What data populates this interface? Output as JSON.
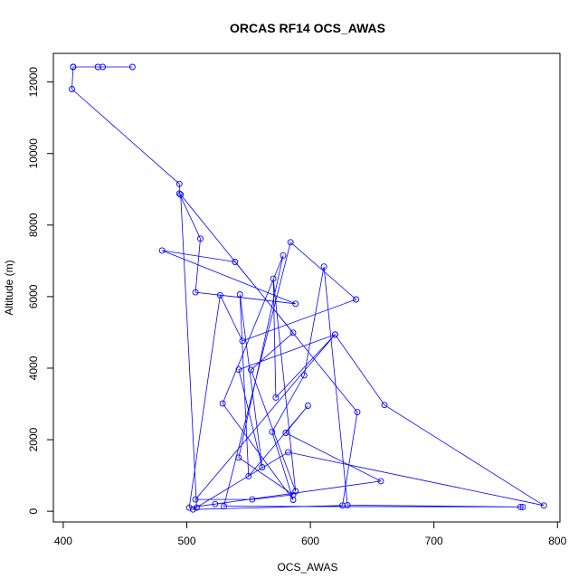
{
  "chart_data": {
    "type": "line",
    "title": "ORCAS RF14 OCS_AWAS",
    "xlabel": "OCS_AWAS",
    "ylabel": "Altitude (m)",
    "xlim": [
      392,
      802
    ],
    "ylim": [
      -300,
      12800
    ],
    "xticks": [
      400,
      500,
      600,
      700,
      800
    ],
    "yticks": [
      0,
      2000,
      4000,
      6000,
      8000,
      10000,
      12000
    ],
    "grid": false,
    "legend": "none",
    "series_color": "#0000ff",
    "points": [
      [
        456,
        12420
      ],
      [
        428,
        12420
      ],
      [
        432,
        12420
      ],
      [
        408,
        12420
      ],
      [
        408,
        12420
      ],
      [
        407,
        11800
      ],
      [
        494,
        9150
      ],
      [
        494,
        8880
      ],
      [
        511,
        7620
      ],
      [
        507,
        6120
      ],
      [
        588,
        5800
      ],
      [
        480,
        7290
      ],
      [
        539,
        6970
      ],
      [
        586,
        4990
      ],
      [
        552,
        3950
      ],
      [
        588,
        560
      ],
      [
        570,
        6500
      ],
      [
        572,
        3180
      ],
      [
        620,
        4940
      ],
      [
        507,
        330
      ],
      [
        553,
        330
      ],
      [
        586,
        460
      ],
      [
        542,
        1500
      ],
      [
        578,
        7150
      ],
      [
        529,
        3010
      ],
      [
        586,
        320
      ],
      [
        569,
        2220
      ],
      [
        595,
        3800
      ],
      [
        611,
        6840
      ],
      [
        630,
        170
      ],
      [
        772,
        120
      ],
      [
        770,
        120
      ],
      [
        530,
        140
      ],
      [
        584,
        7520
      ],
      [
        637,
        5920
      ],
      [
        545,
        4760
      ],
      [
        527,
        6040
      ],
      [
        502,
        100
      ],
      [
        523,
        200
      ],
      [
        657,
        840
      ],
      [
        580,
        2190
      ],
      [
        598,
        2950
      ],
      [
        550,
        980
      ],
      [
        543,
        6060
      ],
      [
        561,
        1230
      ],
      [
        542,
        3960
      ],
      [
        620,
        4940
      ],
      [
        660,
        2970
      ],
      [
        789,
        160
      ],
      [
        582,
        1650
      ],
      [
        505,
        50
      ],
      [
        626,
        160
      ],
      [
        638,
        2770
      ],
      [
        495,
        8850
      ],
      [
        508,
        100
      ]
    ]
  }
}
